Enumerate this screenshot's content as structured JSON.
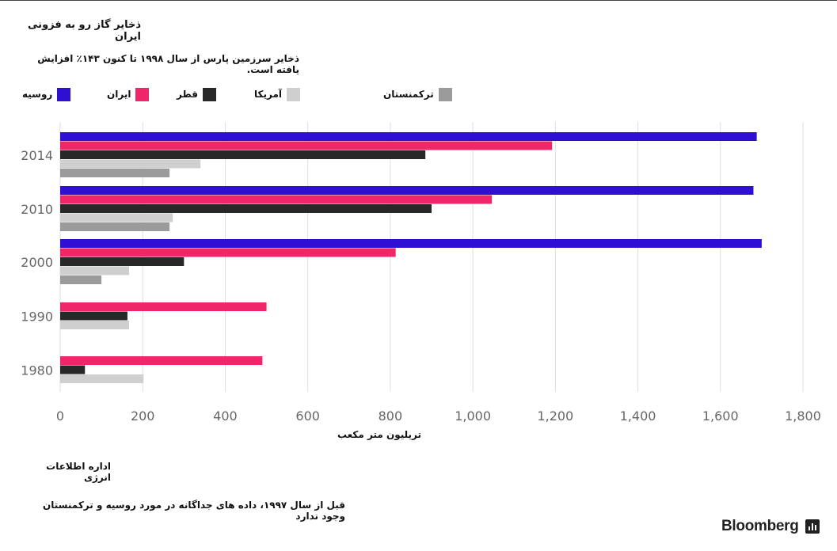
{
  "header": {
    "title": "ذخایر گاز رو به فزونی ایران",
    "subtitle": "ذخایر سرزمین پارس از سال ۱۹۹۸ تا کنون ۱۴۳٪ افزایش یافته است."
  },
  "footer": {
    "source": "اداره اطلاعات انرژی",
    "note": "قبل از سال ۱۹۹۷، داده های جداگانه در مورد روسیه و ترکمنستان وجود ندارد",
    "brand": "Bloomberg"
  },
  "chart_data": {
    "type": "bar",
    "orientation": "horizontal",
    "categories": [
      "2014",
      "2010",
      "2000",
      "1990",
      "1980"
    ],
    "xlabel": "تریلیون متر مکعب",
    "xlim": [
      0,
      1800
    ],
    "xticks": [
      0,
      200,
      400,
      600,
      800,
      1000,
      1200,
      1400,
      1600,
      1800
    ],
    "xtick_labels": [
      "0",
      "200",
      "400",
      "600",
      "800",
      "1,000",
      "1,200",
      "1,400",
      "1,600",
      "1,800"
    ],
    "grid": true,
    "legend_position": "top",
    "series": [
      {
        "name": "روسیه",
        "color": "#2f0fd1",
        "values": [
          1688,
          1680,
          1700,
          null,
          null
        ]
      },
      {
        "name": "ایران",
        "color": "#f0266b",
        "values": [
          1192,
          1046,
          813,
          500,
          490
        ]
      },
      {
        "name": "قطر",
        "color": "#282828",
        "values": [
          885,
          900,
          300,
          163,
          60
        ]
      },
      {
        "name": "آمریکا",
        "color": "#cfcfcf",
        "values": [
          340,
          273,
          167,
          167,
          202
        ]
      },
      {
        "name": "ترکمنستان",
        "color": "#9b9b9b",
        "values": [
          265,
          265,
          100,
          null,
          null
        ]
      }
    ]
  }
}
